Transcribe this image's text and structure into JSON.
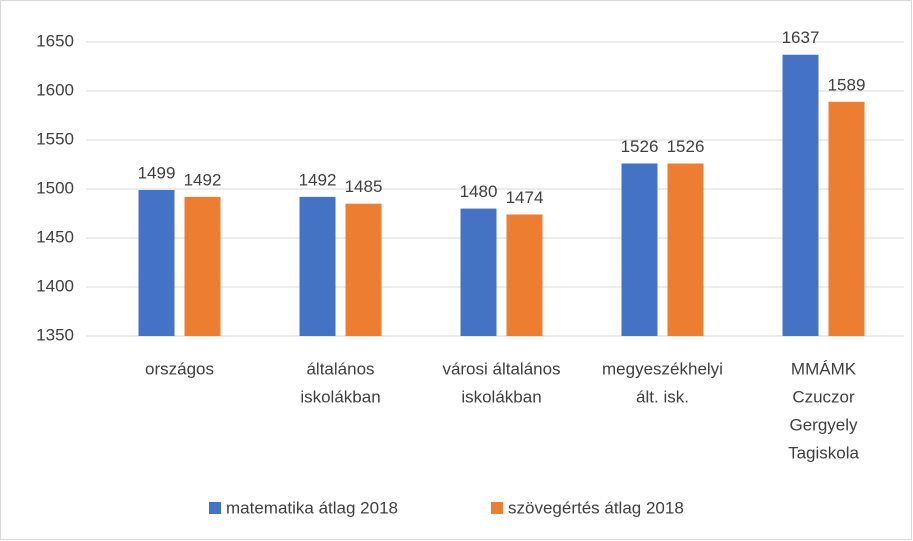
{
  "chart_data": {
    "type": "bar",
    "categories": [
      [
        "országos"
      ],
      [
        "általános",
        "iskolákban"
      ],
      [
        "városi általános",
        "iskolákban"
      ],
      [
        "megyeszékhelyi",
        "ált. isk."
      ],
      [
        "MMÁMK",
        "Czuczor",
        "Gergyely",
        "Tagiskola"
      ]
    ],
    "series": [
      {
        "name": "matematika átlag 2018",
        "color": "#4472c4",
        "values": [
          1499,
          1492,
          1480,
          1526,
          1637
        ]
      },
      {
        "name": "szövegértés átlag 2018",
        "color": "#ed7d31",
        "values": [
          1492,
          1485,
          1474,
          1526,
          1589
        ]
      }
    ],
    "ylim": [
      1350,
      1650
    ],
    "yticks": [
      1350,
      1400,
      1450,
      1500,
      1550,
      1600,
      1650
    ],
    "grid": true,
    "legend": "bottom"
  }
}
